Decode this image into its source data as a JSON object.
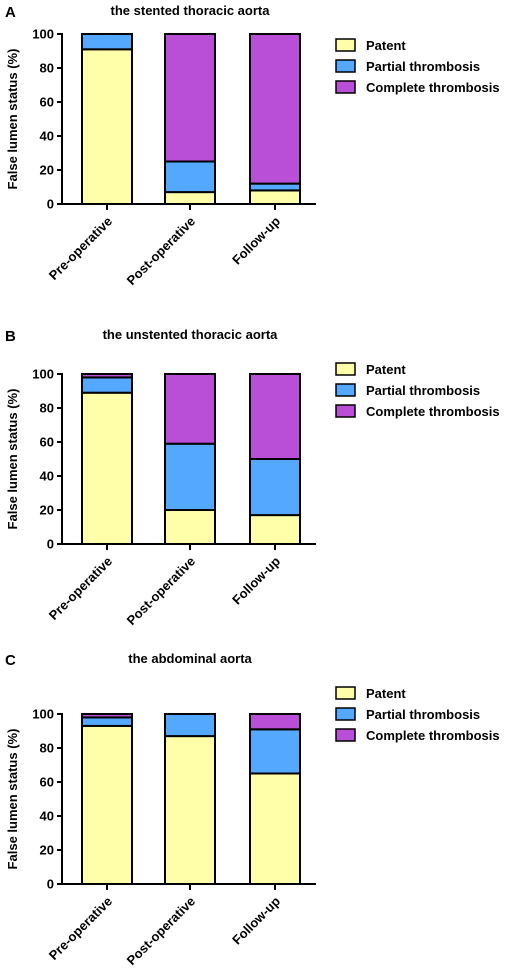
{
  "chart_data": [
    {
      "type": "bar",
      "stacked": true,
      "panel": "A",
      "title": "the stented thoracic aorta",
      "xlabel": "",
      "ylabel": "False lumen status (%)",
      "ylim": [
        0,
        100
      ],
      "yticks": [
        0,
        20,
        40,
        60,
        80,
        100
      ],
      "categories": [
        "Pre-operative",
        "Post-operative",
        "Follow-up"
      ],
      "legend_position": "right",
      "series": [
        {
          "name": "Patent",
          "color": "#FFFFAA",
          "values": [
            91,
            7,
            8
          ]
        },
        {
          "name": "Partial thrombosis",
          "color": "#55A8FF",
          "values": [
            9,
            18,
            4
          ]
        },
        {
          "name": "Complete thrombosis",
          "color": "#B84FD6",
          "values": [
            0,
            75,
            88
          ]
        }
      ]
    },
    {
      "type": "bar",
      "stacked": true,
      "panel": "B",
      "title": "the unstented thoracic aorta",
      "xlabel": "",
      "ylabel": "False lumen status (%)",
      "ylim": [
        0,
        100
      ],
      "yticks": [
        0,
        20,
        40,
        60,
        80,
        100
      ],
      "categories": [
        "Pre-operative",
        "Post-operative",
        "Follow-up"
      ],
      "legend_position": "right",
      "series": [
        {
          "name": "Patent",
          "color": "#FFFFAA",
          "values": [
            89,
            20,
            17
          ]
        },
        {
          "name": "Partial thrombosis",
          "color": "#55A8FF",
          "values": [
            9,
            39,
            33
          ]
        },
        {
          "name": "Complete thrombosis",
          "color": "#B84FD6",
          "values": [
            2,
            41,
            50
          ]
        }
      ]
    },
    {
      "type": "bar",
      "stacked": true,
      "panel": "C",
      "title": "the abdominal aorta",
      "xlabel": "",
      "ylabel": "False lumen status (%)",
      "ylim": [
        0,
        100
      ],
      "yticks": [
        0,
        20,
        40,
        60,
        80,
        100
      ],
      "categories": [
        "Pre-operative",
        "Post-operative",
        "Follow-up"
      ],
      "legend_position": "right",
      "series": [
        {
          "name": "Patent",
          "color": "#FFFFAA",
          "values": [
            93,
            87,
            65
          ]
        },
        {
          "name": "Partial thrombosis",
          "color": "#55A8FF",
          "values": [
            5,
            13,
            26
          ]
        },
        {
          "name": "Complete thrombosis",
          "color": "#B84FD6",
          "values": [
            2,
            0,
            9
          ]
        }
      ]
    }
  ]
}
